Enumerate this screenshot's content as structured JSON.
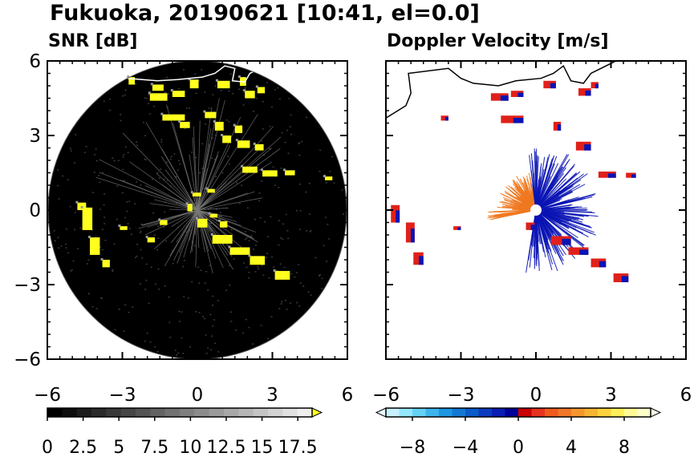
{
  "figure": {
    "title": "Fukuoka, 20190621 [10:41, el=0.0]"
  },
  "colors": {
    "snr_background": "#000000",
    "snr_echo": "#ffff1e",
    "coastline_on_dark": "#ffffff",
    "coastline_on_light": "#000000",
    "velocity_positive": "#e0201a",
    "velocity_negative": "#0a14b4",
    "velocity_orange": "#f07820"
  },
  "chart_data": [
    {
      "type": "heatmap",
      "title": "SNR [dB]",
      "x_range": [
        -6,
        6
      ],
      "y_range": [
        -6,
        6
      ],
      "x_ticks": [
        "−6",
        "−3",
        "0",
        "3",
        "6"
      ],
      "y_ticks": [
        "6",
        "3",
        "0",
        "−3",
        "−6"
      ],
      "colorbar": {
        "range": [
          0,
          18.5
        ],
        "ticks": [
          "0",
          "2.5",
          "5",
          "7.5",
          "10",
          "12.5",
          "15",
          "17.5"
        ],
        "colors": [
          "#000000",
          "#0e0e0e",
          "#1c1c1c",
          "#2a2a2a",
          "#383838",
          "#464646",
          "#545454",
          "#626262",
          "#707070",
          "#7e7e7e",
          "#8c8c8c",
          "#9a9a9a",
          "#a8a8a8",
          "#b6b6b6",
          "#c4c4c4",
          "#d2d2d2",
          "#e0e0e0",
          "#eeeeee"
        ],
        "overflow_color": "#ffff1e"
      },
      "radar_range": 6,
      "echoes": [
        {
          "x": -2.75,
          "y": 5.05,
          "w": 0.25,
          "h": 0.3
        },
        {
          "x": -1.8,
          "y": 4.8,
          "w": 0.45,
          "h": 0.25
        },
        {
          "x": -1.9,
          "y": 4.4,
          "w": 0.7,
          "h": 0.3
        },
        {
          "x": -1.0,
          "y": 4.55,
          "w": 0.5,
          "h": 0.25
        },
        {
          "x": -0.3,
          "y": 4.9,
          "w": 0.35,
          "h": 0.35
        },
        {
          "x": 0.8,
          "y": 4.9,
          "w": 0.5,
          "h": 0.3
        },
        {
          "x": 1.7,
          "y": 5.0,
          "w": 0.25,
          "h": 0.35
        },
        {
          "x": 1.9,
          "y": 4.5,
          "w": 0.4,
          "h": 0.3
        },
        {
          "x": 2.4,
          "y": 4.7,
          "w": 0.3,
          "h": 0.25
        },
        {
          "x": -1.4,
          "y": 3.6,
          "w": 0.9,
          "h": 0.25
        },
        {
          "x": -0.7,
          "y": 3.3,
          "w": 0.4,
          "h": 0.25
        },
        {
          "x": 0.3,
          "y": 3.7,
          "w": 0.45,
          "h": 0.25
        },
        {
          "x": 0.7,
          "y": 3.2,
          "w": 0.35,
          "h": 0.35
        },
        {
          "x": 1.0,
          "y": 2.7,
          "w": 0.35,
          "h": 0.3
        },
        {
          "x": 1.5,
          "y": 3.1,
          "w": 0.3,
          "h": 0.3
        },
        {
          "x": 1.6,
          "y": 2.5,
          "w": 0.5,
          "h": 0.3
        },
        {
          "x": 2.3,
          "y": 2.4,
          "w": 0.35,
          "h": 0.25
        },
        {
          "x": 1.8,
          "y": 1.5,
          "w": 0.6,
          "h": 0.25
        },
        {
          "x": 2.6,
          "y": 1.35,
          "w": 0.6,
          "h": 0.25
        },
        {
          "x": 3.5,
          "y": 1.4,
          "w": 0.4,
          "h": 0.2
        },
        {
          "x": 5.1,
          "y": 1.2,
          "w": 0.3,
          "h": 0.15
        },
        {
          "x": -4.8,
          "y": 0.0,
          "w": 0.35,
          "h": 0.3
        },
        {
          "x": -4.6,
          "y": -0.8,
          "w": 0.4,
          "h": 0.9
        },
        {
          "x": -4.3,
          "y": -1.8,
          "w": 0.4,
          "h": 0.7
        },
        {
          "x": -3.8,
          "y": -2.3,
          "w": 0.3,
          "h": 0.3
        },
        {
          "x": -3.1,
          "y": -0.8,
          "w": 0.3,
          "h": 0.15
        },
        {
          "x": -2.0,
          "y": -1.3,
          "w": 0.3,
          "h": 0.2
        },
        {
          "x": -1.5,
          "y": -0.6,
          "w": 0.3,
          "h": 0.2
        },
        {
          "x": -0.4,
          "y": -0.05,
          "w": 0.2,
          "h": 0.3
        },
        {
          "x": 0.0,
          "y": -0.7,
          "w": 0.4,
          "h": 0.35
        },
        {
          "x": 0.6,
          "y": -1.35,
          "w": 0.8,
          "h": 0.35
        },
        {
          "x": 1.3,
          "y": -1.8,
          "w": 0.8,
          "h": 0.3
        },
        {
          "x": 2.1,
          "y": -2.2,
          "w": 0.6,
          "h": 0.35
        },
        {
          "x": 3.1,
          "y": -2.8,
          "w": 0.6,
          "h": 0.35
        },
        {
          "x": 0.9,
          "y": -0.7,
          "w": 0.3,
          "h": 0.25
        },
        {
          "x": -0.2,
          "y": 0.55,
          "w": 0.35,
          "h": 0.15
        },
        {
          "x": 0.4,
          "y": 0.7,
          "w": 0.3,
          "h": 0.15
        },
        {
          "x": 0.5,
          "y": -0.3,
          "w": 0.3,
          "h": 0.15
        }
      ]
    },
    {
      "type": "heatmap",
      "title": "Doppler Velocity [m/s]",
      "x_range": [
        -6,
        6
      ],
      "y_range": [
        -6,
        6
      ],
      "x_ticks": [
        "−6",
        "−3",
        "0",
        "3",
        "6"
      ],
      "y_ticks": [
        "6",
        "3",
        "0",
        "−3",
        "−6"
      ],
      "colorbar": {
        "range": [
          -10,
          10
        ],
        "ticks": [
          "−8",
          "−4",
          "0",
          "4",
          "8"
        ],
        "colors": [
          "#c8f0ff",
          "#96e6ff",
          "#64d2f5",
          "#3cb4eb",
          "#1e96e1",
          "#1478d2",
          "#0a5ac8",
          "#0a3cbe",
          "#0a1eb4",
          "#000096",
          "#c80000",
          "#e6321e",
          "#f05a1e",
          "#f07828",
          "#f5962d",
          "#f5b432",
          "#fad23c",
          "#fff05a",
          "#fffa96",
          "#ffffcc"
        ],
        "underflow_color": "#e8fcff",
        "overflow_color": "#ffffe6"
      },
      "radar_range": 6,
      "echoes": [
        {
          "x": -5.8,
          "y": -0.5,
          "w": 0.35,
          "h": 0.7
        },
        {
          "x": -5.2,
          "y": -1.3,
          "w": 0.35,
          "h": 0.8
        },
        {
          "x": -4.9,
          "y": -2.2,
          "w": 0.4,
          "h": 0.5
        },
        {
          "x": -3.8,
          "y": 3.6,
          "w": 0.3,
          "h": 0.2
        },
        {
          "x": -1.8,
          "y": 4.4,
          "w": 0.7,
          "h": 0.3
        },
        {
          "x": -1.0,
          "y": 4.55,
          "w": 0.5,
          "h": 0.25
        },
        {
          "x": 0.3,
          "y": 4.9,
          "w": 0.5,
          "h": 0.3
        },
        {
          "x": 1.7,
          "y": 4.6,
          "w": 0.5,
          "h": 0.3
        },
        {
          "x": 2.2,
          "y": 4.9,
          "w": 0.3,
          "h": 0.25
        },
        {
          "x": -1.4,
          "y": 3.5,
          "w": 0.9,
          "h": 0.3
        },
        {
          "x": 0.7,
          "y": 3.2,
          "w": 0.3,
          "h": 0.35
        },
        {
          "x": 1.6,
          "y": 2.4,
          "w": 0.6,
          "h": 0.35
        },
        {
          "x": 2.5,
          "y": 1.3,
          "w": 0.7,
          "h": 0.25
        },
        {
          "x": 3.6,
          "y": 1.3,
          "w": 0.4,
          "h": 0.2
        },
        {
          "x": -3.3,
          "y": -0.8,
          "w": 0.3,
          "h": 0.15
        },
        {
          "x": -0.4,
          "y": -0.8,
          "w": 0.35,
          "h": 0.3
        },
        {
          "x": 0.6,
          "y": -1.4,
          "w": 0.8,
          "h": 0.35
        },
        {
          "x": 1.3,
          "y": -1.8,
          "w": 0.8,
          "h": 0.3
        },
        {
          "x": 2.2,
          "y": -2.3,
          "w": 0.6,
          "h": 0.35
        },
        {
          "x": 3.1,
          "y": -2.9,
          "w": 0.6,
          "h": 0.35
        }
      ],
      "sector_positive": {
        "from_deg": 190,
        "to_deg": 270,
        "reach": 1.6
      },
      "sector_negative": {
        "from_deg": 270,
        "to_deg": 440,
        "reach": 2.6
      }
    }
  ]
}
